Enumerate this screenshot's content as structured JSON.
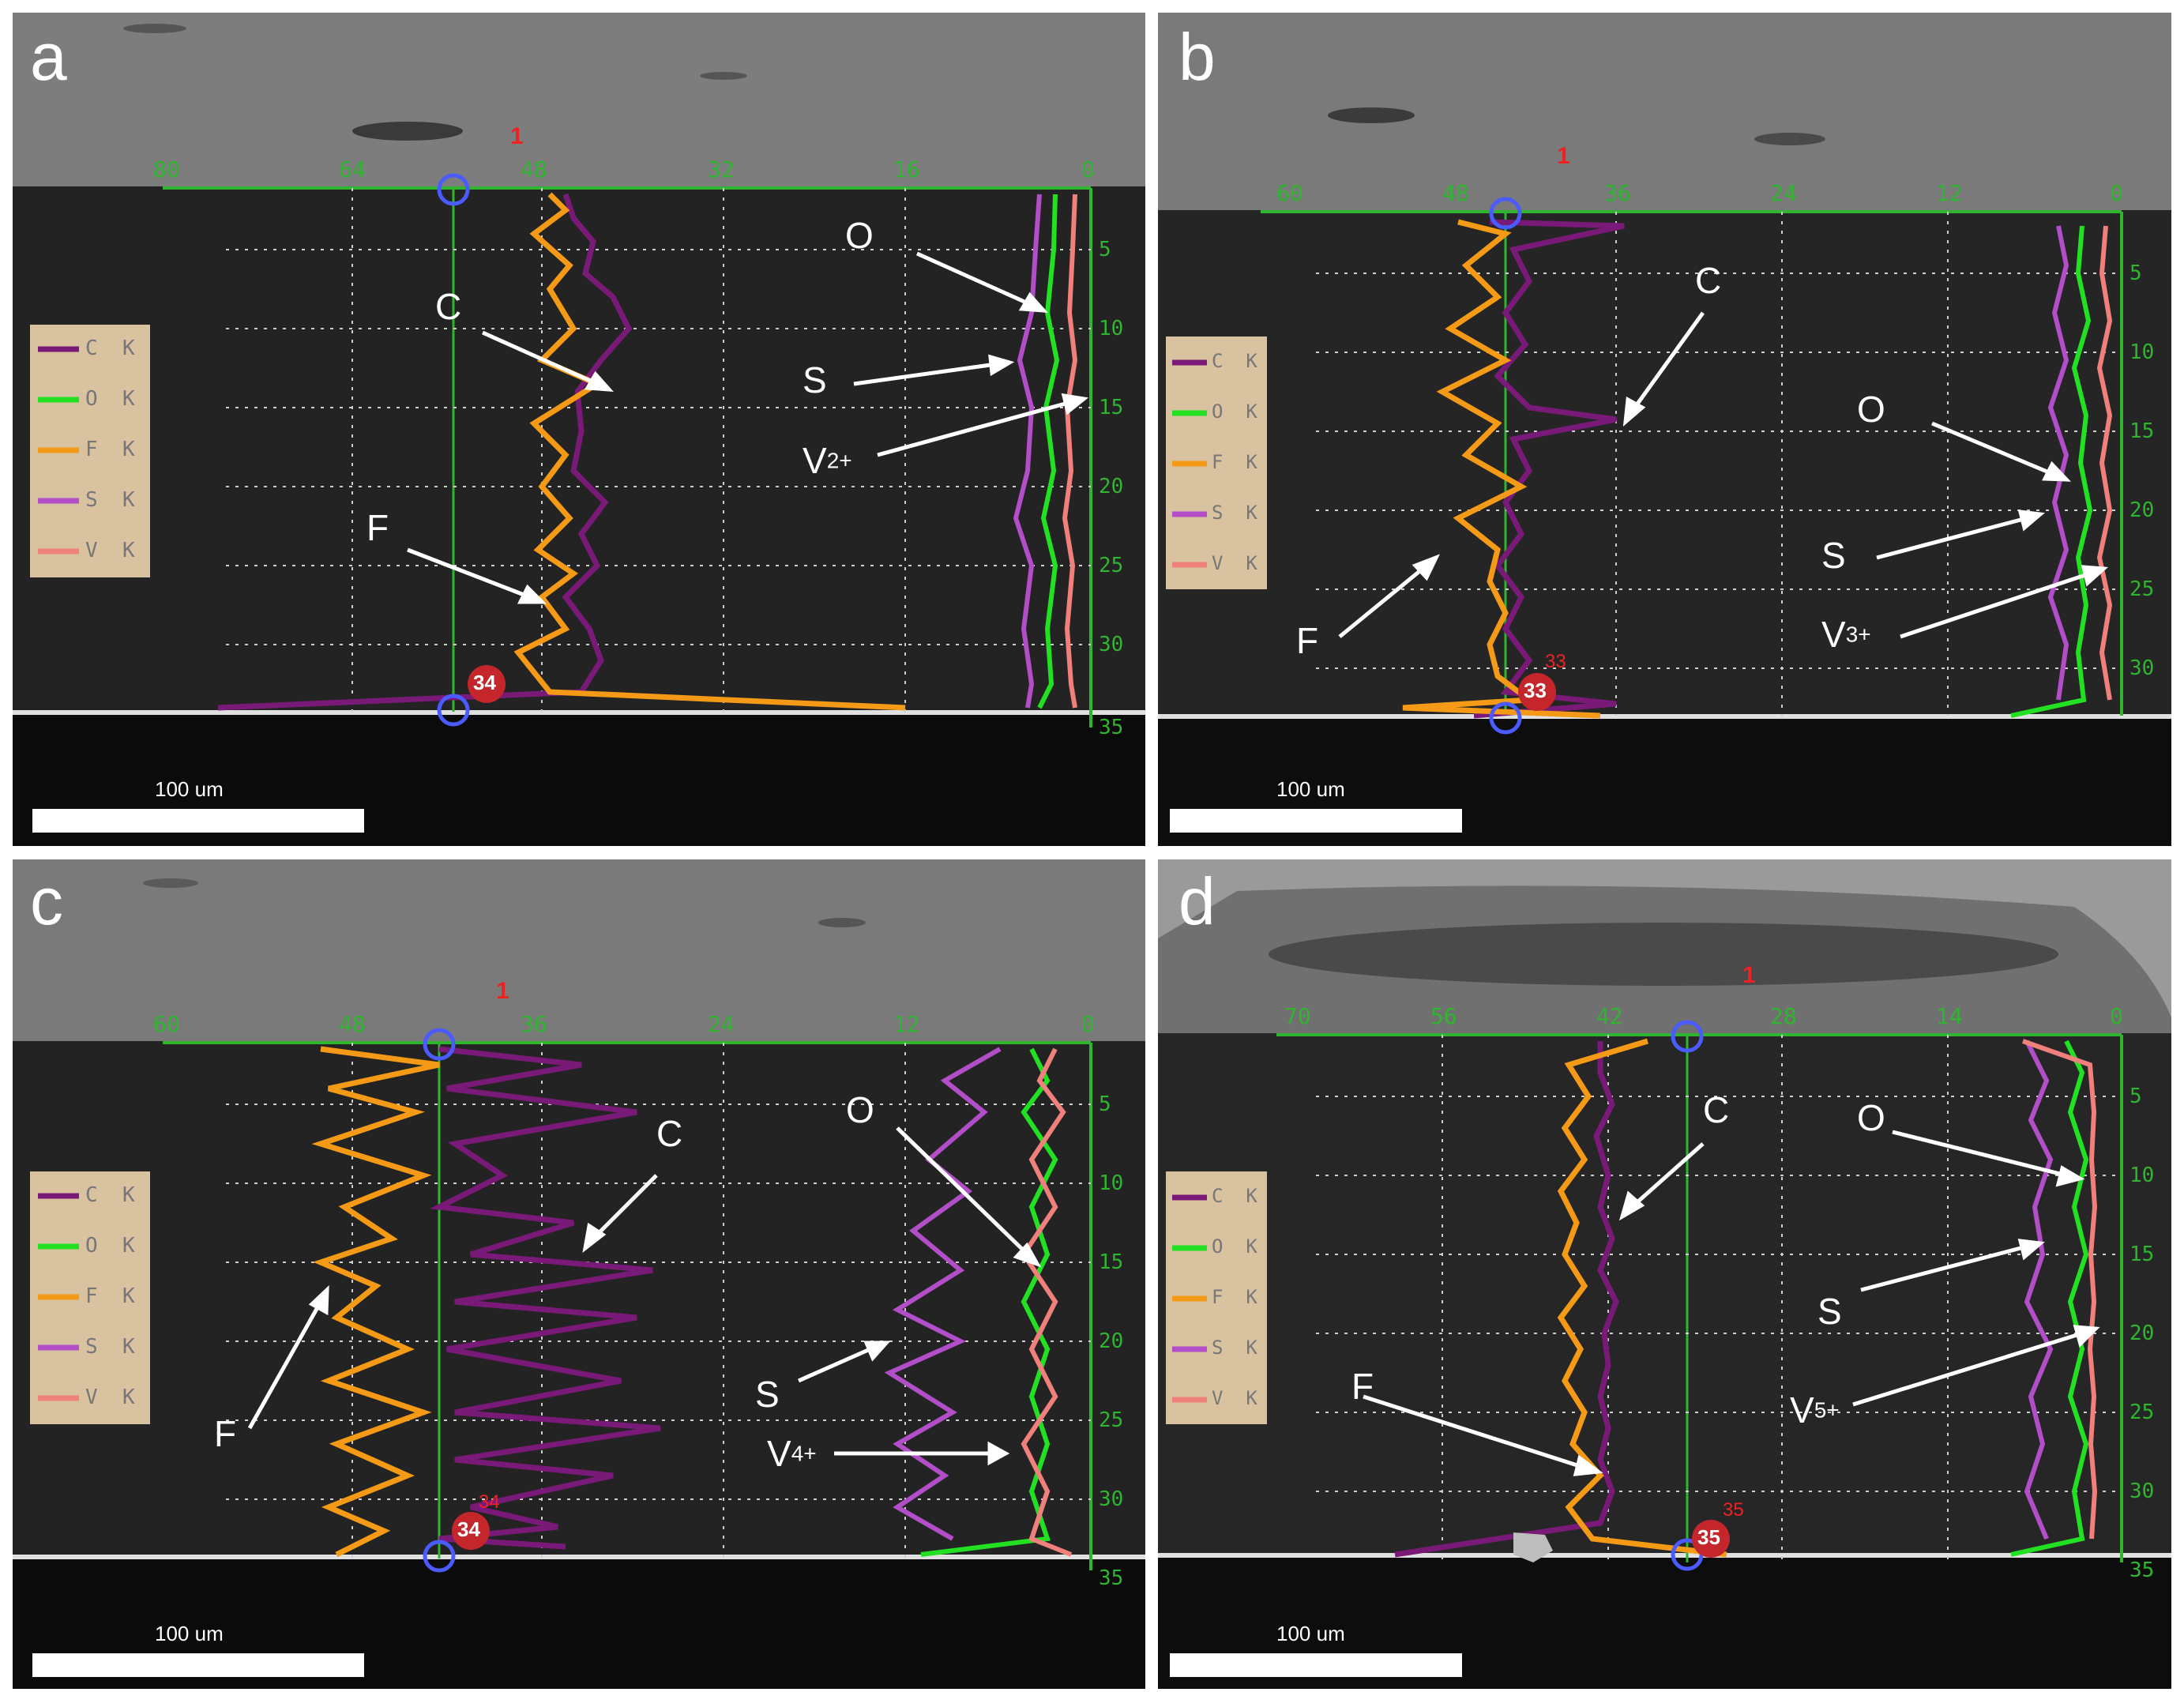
{
  "panels": [
    {
      "letter": "a",
      "xticks": [
        "80",
        "64",
        "48",
        "32",
        "16",
        "0"
      ],
      "yticks": [
        "5",
        "10",
        "15",
        "20",
        "25",
        "30",
        "35"
      ],
      "marker_top": "1",
      "badge": "34",
      "legend": [
        "C  K",
        "O  K",
        "F  K",
        "S  K",
        "V  K"
      ],
      "scale_bar": "100 um",
      "arrows": {
        "C": "C",
        "F": "F",
        "O": "O",
        "S": "S",
        "V": "V",
        "V_ox": "2+"
      }
    },
    {
      "letter": "b",
      "xticks": [
        "60",
        "48",
        "36",
        "24",
        "12",
        "0"
      ],
      "yticks": [
        "5",
        "10",
        "15",
        "20",
        "25",
        "30"
      ],
      "marker_top": "1",
      "badge": "33",
      "badge_small": "33",
      "legend": [
        "C  K",
        "O  K",
        "F  K",
        "S  K",
        "V  K"
      ],
      "scale_bar": "100 um",
      "arrows": {
        "C": "C",
        "F": "F",
        "O": "O",
        "S": "S",
        "V": "V",
        "V_ox": "3+"
      }
    },
    {
      "letter": "c",
      "xticks": [
        "60",
        "48",
        "36",
        "24",
        "12",
        "0"
      ],
      "yticks": [
        "5",
        "10",
        "15",
        "20",
        "25",
        "30",
        "35"
      ],
      "marker_top": "1",
      "badge": "34",
      "badge_small": "34",
      "legend": [
        "C  K",
        "O  K",
        "F  K",
        "S  K",
        "V  K"
      ],
      "scale_bar": "100 um",
      "arrows": {
        "C": "C",
        "F": "F",
        "O": "O",
        "S": "S",
        "V": "V",
        "V_ox": "4+"
      }
    },
    {
      "letter": "d",
      "xticks": [
        "70",
        "56",
        "42",
        "28",
        "14",
        "0"
      ],
      "yticks": [
        "5",
        "10",
        "15",
        "20",
        "25",
        "30",
        "35"
      ],
      "marker_top": "1",
      "badge": "35",
      "badge_small": "35",
      "legend": [
        "C  K",
        "O  K",
        "F  K",
        "S  K",
        "V  K"
      ],
      "scale_bar": "100 um",
      "arrows": {
        "C": "C",
        "F": "F",
        "O": "O",
        "S": "S",
        "V": "V",
        "V_ox": "5+"
      }
    }
  ],
  "colors": {
    "C": "#7a1a78",
    "O": "#22e022",
    "F": "#f59a16",
    "S": "#b14ec8",
    "V": "#f0807c",
    "axis": "#2fb52f",
    "legend_bg": "#d9c2a0"
  }
}
